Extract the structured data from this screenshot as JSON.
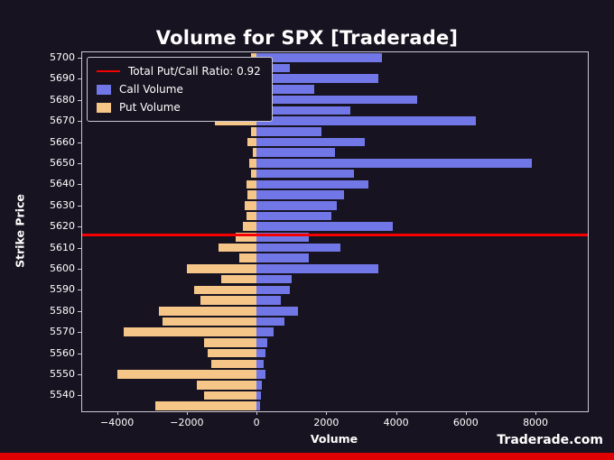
{
  "title": "Volume for SPX [Traderade]",
  "watermark": "Traderade.com",
  "legend": {
    "ratio_label": "Total Put/Call Ratio: 0.92",
    "call_label": "Call Volume",
    "put_label": "Put Volume"
  },
  "colors": {
    "background": "#171320",
    "call": "#7277e8",
    "put": "#f6c689",
    "ratio_line": "#f40000",
    "spine": "#c9c9d2",
    "text": "#ffffff",
    "bottom_strip": "#df0000"
  },
  "chart_data": {
    "type": "bar",
    "orientation": "horizontal",
    "title": "Volume for SPX [Traderade]",
    "xlabel": "Volume",
    "ylabel": "Strike Price",
    "xlim": [
      -5000,
      9500
    ],
    "x_ticks": [
      -4000,
      -2000,
      0,
      2000,
      4000,
      6000,
      8000
    ],
    "x_tick_labels": [
      "−4000",
      "−2000",
      "0",
      "2000",
      "4000",
      "6000",
      "8000"
    ],
    "y_tick_strikes": [
      5700,
      5690,
      5680,
      5670,
      5660,
      5650,
      5640,
      5630,
      5620,
      5610,
      5600,
      5590,
      5580,
      5570,
      5560,
      5550,
      5540
    ],
    "y_tick_labels": [
      "5700",
      "5690",
      "5680",
      "5670",
      "5660",
      "5650",
      "5640",
      "5630",
      "5620",
      "5610",
      "5600",
      "5590",
      "5580",
      "5570",
      "5560",
      "5550",
      "5540"
    ],
    "total_put_call_ratio": 0.92,
    "ratio_line_strike": 5616,
    "strikes": [
      5700,
      5695,
      5690,
      5685,
      5680,
      5675,
      5670,
      5665,
      5660,
      5655,
      5650,
      5645,
      5640,
      5635,
      5630,
      5625,
      5620,
      5615,
      5610,
      5605,
      5600,
      5595,
      5590,
      5585,
      5580,
      5575,
      5570,
      5565,
      5560,
      5555,
      5550,
      5545,
      5540,
      5535
    ],
    "series": [
      {
        "name": "Call Volume",
        "direction": "right",
        "values": [
          3600,
          950,
          3500,
          1650,
          4600,
          2700,
          6300,
          1850,
          3100,
          2250,
          7900,
          2800,
          3200,
          2500,
          2300,
          2150,
          3900,
          1500,
          2400,
          1500,
          3500,
          1000,
          950,
          700,
          1200,
          800,
          500,
          300,
          250,
          200,
          250,
          150,
          120,
          100
        ]
      },
      {
        "name": "Put Volume",
        "direction": "left",
        "values": [
          150,
          100,
          150,
          100,
          200,
          150,
          1200,
          150,
          250,
          100,
          200,
          150,
          300,
          250,
          350,
          300,
          400,
          600,
          1100,
          500,
          2000,
          1000,
          1800,
          1600,
          2800,
          2700,
          3800,
          1500,
          1400,
          1300,
          4000,
          1700,
          1500,
          2900
        ]
      }
    ]
  }
}
